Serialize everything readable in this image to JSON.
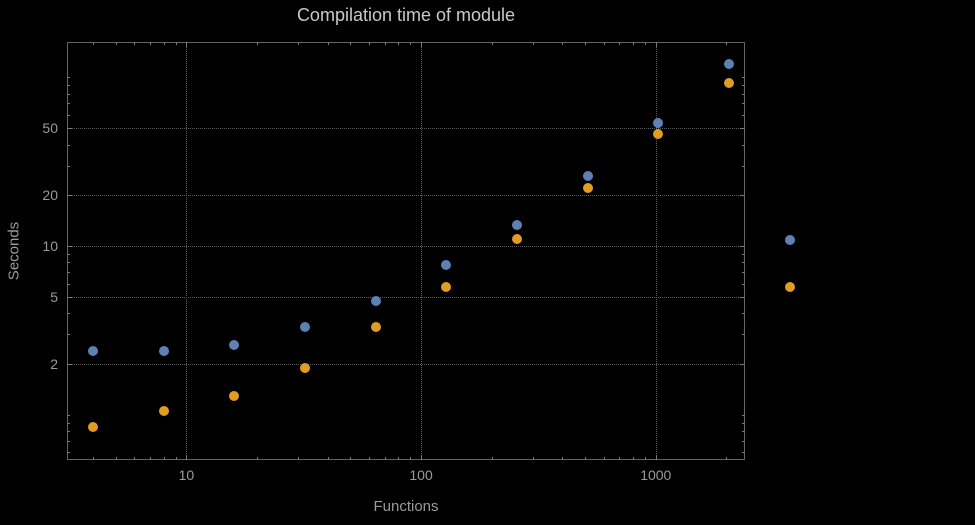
{
  "page": {
    "background": "#000000"
  },
  "chart_data": {
    "type": "scatter",
    "title": "Compilation time of module",
    "xlabel": "Functions",
    "ylabel": "Seconds",
    "x_scale": "log",
    "y_scale": "log",
    "xlim": [
      3.1,
      2400
    ],
    "ylim": [
      0.54,
      162
    ],
    "grid": "dotted",
    "x": [
      4,
      8,
      16,
      32,
      64,
      128,
      256,
      512,
      1024,
      2048
    ],
    "series": [
      {
        "color": "#5E81B5",
        "values": [
          2.4,
          2.4,
          2.6,
          3.3,
          4.7,
          7.7,
          13.3,
          26,
          54,
          120
        ]
      },
      {
        "color": "#E19C24",
        "values": [
          0.85,
          1.05,
          1.3,
          1.9,
          3.3,
          5.7,
          11,
          22,
          46,
          93
        ]
      }
    ],
    "x_ticks": [
      {
        "value": 10,
        "label": "10"
      },
      {
        "value": 100,
        "label": "100"
      },
      {
        "value": 1000,
        "label": "1000"
      }
    ],
    "y_ticks": [
      {
        "value": 2,
        "label": "2"
      },
      {
        "value": 5,
        "label": "5"
      },
      {
        "value": 10,
        "label": "10"
      },
      {
        "value": 20,
        "label": "20"
      },
      {
        "value": 50,
        "label": "50"
      }
    ],
    "legend": {
      "position": "right",
      "labels_visible": false,
      "markers": [
        {
          "color": "#5E81B5"
        },
        {
          "color": "#E19C24"
        }
      ]
    },
    "colors": {
      "frame": "#636363",
      "grid": "#5e5e5e",
      "tick": "#7a7a7a",
      "text": "#9a9a9a",
      "title": "#c9c9c9",
      "background": "#000000"
    }
  }
}
